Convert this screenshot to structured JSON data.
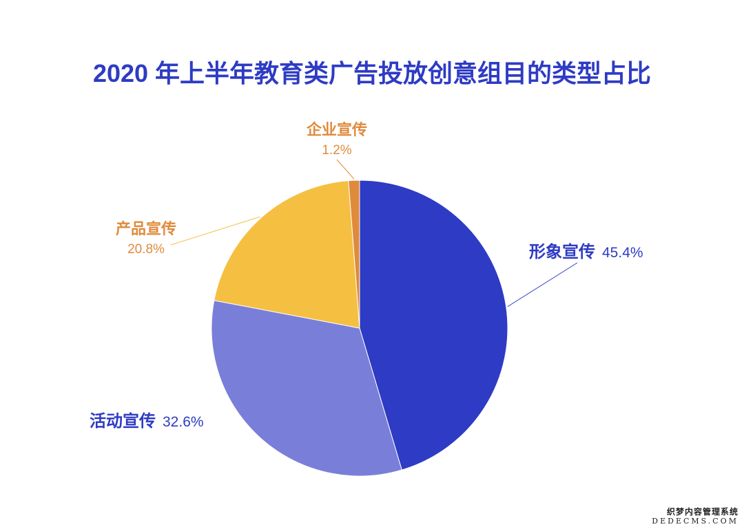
{
  "colors": {
    "title": "#2e3bc4",
    "label_dark": "#2e3bc4",
    "label_orange": "#e08a3c"
  },
  "watermark": {
    "line1": "织梦内容管理系统",
    "line2": "DEDECMS.COM"
  },
  "chart_data": {
    "type": "pie",
    "title": "2020 年上半年教育类广告投放创意组目的类型占比",
    "unit": "%",
    "slices": [
      {
        "label": "形象宣传",
        "value": 45.4,
        "value_label": "45.4%",
        "color": "#2e3bc4"
      },
      {
        "label": "活动宣传",
        "value": 32.6,
        "value_label": "32.6%",
        "color": "#797fd8"
      },
      {
        "label": "产品宣传",
        "value": 20.8,
        "value_label": "20.8%",
        "color": "#f5bf42"
      },
      {
        "label": "企业宣传",
        "value": 1.2,
        "value_label": "1.2%",
        "color": "#e08a3c"
      }
    ],
    "start_angle": "top, clockwise",
    "legend": "none",
    "labels": "outside with leader lines"
  }
}
